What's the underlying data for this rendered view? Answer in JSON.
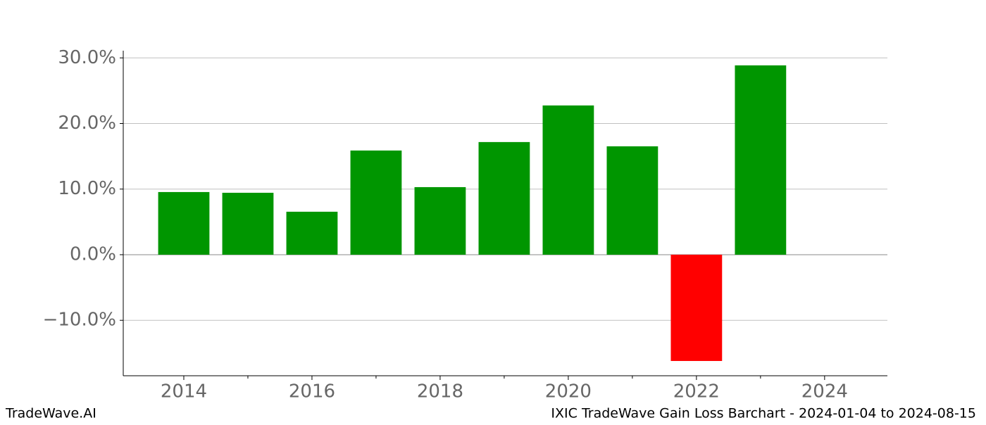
{
  "chart_data": {
    "type": "bar",
    "title": "IXIC TradeWave Gain Loss Barchart - 2024-01-04 to 2024-08-15",
    "brand": "TradeWave.AI",
    "x": [
      2014,
      2015,
      2016,
      2017,
      2018,
      2019,
      2020,
      2021,
      2022,
      2023
    ],
    "values": [
      9.55,
      9.44,
      6.55,
      15.88,
      10.3,
      17.17,
      22.75,
      16.52,
      -16.2,
      28.86
    ],
    "colors": [
      "#009600",
      "#009600",
      "#009600",
      "#009600",
      "#009600",
      "#009600",
      "#009600",
      "#009600",
      "#ff0000",
      "#009600"
    ],
    "bar_width": 0.8,
    "xlim": [
      2013.055,
      2024.98
    ],
    "xticks": [
      2014,
      2016,
      2018,
      2020,
      2022,
      2024
    ],
    "xminorticks": [
      2015,
      2017,
      2019,
      2021,
      2023
    ],
    "ylim": [
      -18.45,
      31.1
    ],
    "yticks": [
      {
        "value": -10,
        "label": "−10.0%"
      },
      {
        "value": 0,
        "label": "0.0%"
      },
      {
        "value": 10,
        "label": "10.0%"
      },
      {
        "value": 20,
        "label": "20.0%"
      },
      {
        "value": 30,
        "label": "30.0%"
      }
    ],
    "grid": true
  }
}
